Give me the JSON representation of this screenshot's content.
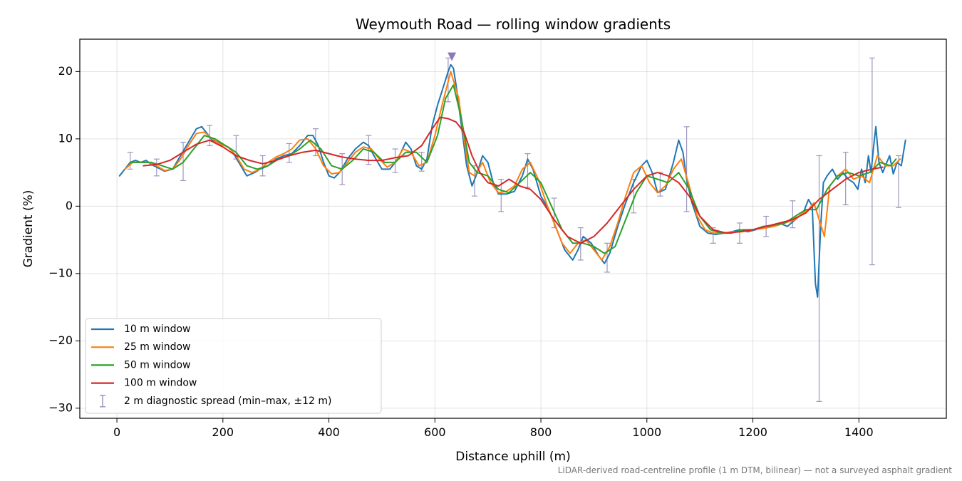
{
  "chart_data": {
    "type": "line",
    "title": "Weymouth Road — rolling window gradients",
    "xlabel": "Distance uphill (m)",
    "ylabel": "Gradient (%)",
    "xlim": [
      -70,
      1565
    ],
    "ylim": [
      -31.5,
      24.8
    ],
    "xticks": [
      0,
      200,
      400,
      600,
      800,
      1000,
      1200,
      1400
    ],
    "yticks": [
      -30,
      -20,
      -10,
      0,
      10,
      20
    ],
    "ytick_labels": [
      "−30",
      "−20",
      "−10",
      "0",
      "10",
      "20"
    ],
    "grid": true,
    "legend_position": "lower-left",
    "footnote": "LiDAR-derived road-centreline profile (1 m DTM, bilinear) — not a surveyed asphalt gradient",
    "series": [
      {
        "name": "10 m window",
        "color": "#1f77b4",
        "x": [
          5,
          15,
          25,
          35,
          45,
          55,
          65,
          75,
          90,
          105,
          120,
          135,
          150,
          160,
          170,
          180,
          190,
          200,
          215,
          230,
          245,
          260,
          270,
          285,
          300,
          315,
          330,
          345,
          360,
          370,
          380,
          390,
          400,
          410,
          420,
          435,
          450,
          465,
          475,
          485,
          500,
          515,
          530,
          545,
          555,
          565,
          575,
          585,
          595,
          605,
          615,
          625,
          630,
          635,
          640,
          650,
          660,
          670,
          680,
          690,
          700,
          710,
          720,
          735,
          750,
          765,
          775,
          785,
          800,
          815,
          830,
          845,
          860,
          870,
          880,
          895,
          910,
          920,
          930,
          945,
          960,
          975,
          990,
          1000,
          1010,
          1020,
          1035,
          1050,
          1060,
          1068,
          1075,
          1085,
          1100,
          1115,
          1130,
          1145,
          1160,
          1175,
          1190,
          1205,
          1220,
          1235,
          1250,
          1265,
          1280,
          1295,
          1305,
          1312,
          1318,
          1322,
          1328,
          1333,
          1340,
          1350,
          1360,
          1370,
          1380,
          1390,
          1398,
          1405,
          1412,
          1418,
          1423,
          1428,
          1432,
          1438,
          1445,
          1450,
          1458,
          1465,
          1472,
          1480,
          1488
        ],
        "y": [
          4.5,
          5.5,
          6.5,
          6.8,
          6.5,
          6.8,
          6.2,
          5.8,
          5.2,
          5.5,
          7.5,
          9.5,
          11.5,
          11.8,
          10.8,
          9.8,
          9.5,
          9.2,
          8.5,
          6.5,
          4.5,
          5.0,
          5.5,
          6.0,
          7.0,
          7.5,
          7.8,
          9.0,
          10.5,
          10.5,
          9.0,
          6.5,
          4.5,
          4.2,
          5.0,
          7.0,
          8.5,
          9.5,
          9.0,
          7.5,
          5.5,
          5.5,
          7.0,
          9.5,
          8.5,
          6.0,
          5.5,
          7.0,
          12.0,
          15.0,
          17.5,
          20.0,
          21.0,
          20.5,
          18.0,
          12.0,
          6.0,
          3.0,
          5.0,
          7.5,
          6.5,
          3.5,
          1.8,
          1.8,
          2.2,
          4.5,
          7.0,
          5.5,
          1.5,
          -0.5,
          -3.5,
          -6.5,
          -8.0,
          -6.5,
          -4.5,
          -5.5,
          -7.5,
          -8.5,
          -7.0,
          -3.0,
          0.5,
          3.5,
          6.0,
          6.8,
          5.0,
          2.0,
          2.5,
          6.5,
          9.8,
          8.0,
          4.0,
          0.5,
          -3.0,
          -4.0,
          -4.2,
          -4.0,
          -3.8,
          -3.5,
          -3.8,
          -3.5,
          -3.0,
          -3.0,
          -2.5,
          -3.0,
          -2.0,
          -1.0,
          1.0,
          0.0,
          -11.5,
          -13.5,
          -3.0,
          3.5,
          4.5,
          5.5,
          4.0,
          5.0,
          4.0,
          3.5,
          2.5,
          5.5,
          3.5,
          7.5,
          5.0,
          9.0,
          11.8,
          6.5,
          5.0,
          6.0,
          7.5,
          4.8,
          6.5,
          6.0,
          9.8
        ]
      },
      {
        "name": "25 m window",
        "color": "#ff7f0e",
        "x": [
          15,
          30,
          45,
          60,
          75,
          90,
          105,
          120,
          135,
          150,
          165,
          180,
          195,
          210,
          225,
          240,
          255,
          270,
          285,
          300,
          315,
          330,
          345,
          360,
          375,
          390,
          405,
          420,
          435,
          450,
          465,
          480,
          495,
          510,
          525,
          540,
          555,
          570,
          585,
          600,
          615,
          630,
          645,
          655,
          665,
          675,
          690,
          705,
          720,
          735,
          750,
          765,
          780,
          795,
          810,
          825,
          840,
          855,
          870,
          885,
          900,
          915,
          930,
          945,
          960,
          975,
          990,
          1005,
          1020,
          1035,
          1050,
          1065,
          1080,
          1095,
          1110,
          1125,
          1140,
          1160,
          1180,
          1200,
          1220,
          1240,
          1260,
          1280,
          1295,
          1305,
          1315,
          1325,
          1335,
          1345,
          1360,
          1375,
          1390,
          1405,
          1420,
          1435,
          1450,
          1465,
          1478
        ],
        "y": [
          5.5,
          6.5,
          6.5,
          6.5,
          6.0,
          5.3,
          5.5,
          7.0,
          9.0,
          10.8,
          11.0,
          10.0,
          9.2,
          8.8,
          7.5,
          5.5,
          5.0,
          5.5,
          6.5,
          7.3,
          7.8,
          8.5,
          9.8,
          10.0,
          8.5,
          6.0,
          4.8,
          5.0,
          6.5,
          8.0,
          8.8,
          8.5,
          7.0,
          5.8,
          6.5,
          8.5,
          8.0,
          6.0,
          6.5,
          10.5,
          15.5,
          20.0,
          16.0,
          10.0,
          5.0,
          4.5,
          6.5,
          3.5,
          2.0,
          2.2,
          3.0,
          5.5,
          6.5,
          4.0,
          0.5,
          -2.5,
          -5.5,
          -7.0,
          -5.5,
          -5.0,
          -6.5,
          -8.0,
          -6.0,
          -2.5,
          1.5,
          5.0,
          6.0,
          3.5,
          2.0,
          3.0,
          5.5,
          7.0,
          3.0,
          -1.5,
          -3.5,
          -4.0,
          -4.0,
          -3.8,
          -3.8,
          -3.5,
          -3.3,
          -3.0,
          -2.5,
          -2.0,
          -1.0,
          -0.5,
          0.5,
          -2.0,
          -4.5,
          3.0,
          4.5,
          5.5,
          4.0,
          4.5,
          3.5,
          7.5,
          6.0,
          6.0,
          7.0
        ]
      },
      {
        "name": "50 m window",
        "color": "#2ca02c",
        "x": [
          25,
          45,
          65,
          85,
          105,
          125,
          145,
          165,
          185,
          205,
          225,
          245,
          265,
          285,
          305,
          325,
          345,
          365,
          385,
          405,
          425,
          445,
          465,
          485,
          505,
          525,
          545,
          565,
          585,
          605,
          620,
          635,
          650,
          665,
          680,
          700,
          720,
          740,
          760,
          780,
          800,
          820,
          840,
          860,
          880,
          900,
          920,
          940,
          960,
          980,
          1000,
          1020,
          1040,
          1060,
          1080,
          1100,
          1120,
          1140,
          1160,
          1180,
          1200,
          1220,
          1240,
          1260,
          1280,
          1300,
          1320,
          1340,
          1360,
          1380,
          1400,
          1420,
          1440,
          1460,
          1470
        ],
        "y": [
          6.5,
          6.5,
          6.5,
          6.0,
          5.5,
          6.5,
          8.5,
          10.5,
          10.0,
          9.0,
          8.0,
          6.0,
          5.5,
          6.0,
          7.0,
          7.5,
          8.5,
          9.8,
          8.5,
          6.0,
          5.5,
          6.8,
          8.5,
          8.0,
          6.5,
          6.5,
          8.0,
          8.0,
          6.5,
          10.5,
          16.0,
          18.0,
          13.0,
          6.5,
          5.0,
          4.5,
          2.5,
          2.0,
          3.5,
          5.0,
          3.5,
          0.0,
          -3.5,
          -5.5,
          -5.5,
          -6.0,
          -7.0,
          -6.0,
          -2.0,
          2.0,
          4.5,
          4.0,
          3.5,
          5.0,
          2.5,
          -1.5,
          -3.5,
          -4.0,
          -4.0,
          -3.5,
          -3.5,
          -3.0,
          -2.8,
          -2.5,
          -1.5,
          -0.5,
          -0.5,
          2.5,
          4.5,
          5.0,
          4.5,
          5.0,
          6.5,
          6.0,
          7.0
        ]
      },
      {
        "name": "100 m window",
        "color": "#d62728",
        "x": [
          50,
          75,
          100,
          125,
          150,
          175,
          200,
          225,
          250,
          275,
          300,
          325,
          350,
          375,
          400,
          425,
          450,
          475,
          500,
          525,
          550,
          575,
          595,
          610,
          625,
          640,
          655,
          670,
          685,
          700,
          720,
          740,
          760,
          780,
          800,
          825,
          850,
          875,
          900,
          925,
          950,
          975,
          1000,
          1020,
          1040,
          1060,
          1080,
          1100,
          1125,
          1150,
          1175,
          1200,
          1225,
          1250,
          1275,
          1300,
          1325,
          1350,
          1375,
          1400,
          1425,
          1445
        ],
        "y": [
          6.0,
          6.2,
          6.8,
          8.0,
          9.2,
          9.8,
          8.8,
          7.5,
          6.8,
          6.3,
          6.8,
          7.5,
          8.0,
          8.3,
          7.8,
          7.3,
          7.0,
          6.8,
          6.8,
          7.2,
          7.5,
          9.0,
          11.5,
          13.2,
          13.0,
          12.5,
          11.0,
          7.5,
          5.0,
          3.5,
          3.0,
          4.0,
          3.0,
          2.5,
          1.0,
          -2.0,
          -4.5,
          -5.5,
          -4.5,
          -2.5,
          0.0,
          2.5,
          4.5,
          5.0,
          4.5,
          3.5,
          1.5,
          -1.5,
          -3.5,
          -4.0,
          -3.8,
          -3.5,
          -3.0,
          -2.5,
          -2.0,
          -1.0,
          1.0,
          2.5,
          4.0,
          5.0,
          5.5,
          5.8
        ]
      },
      {
        "name": "2 m diagnostic spread (min–max, ±12 m)",
        "type": "errorbar",
        "color": "#9d96be",
        "points": [
          {
            "x": 25,
            "low": 5.5,
            "high": 8.0
          },
          {
            "x": 75,
            "low": 4.5,
            "high": 7.0
          },
          {
            "x": 125,
            "low": 3.8,
            "high": 9.5
          },
          {
            "x": 175,
            "low": 9.0,
            "high": 12.0
          },
          {
            "x": 225,
            "low": 7.0,
            "high": 10.5
          },
          {
            "x": 275,
            "low": 4.5,
            "high": 7.5
          },
          {
            "x": 325,
            "low": 6.5,
            "high": 9.3
          },
          {
            "x": 375,
            "low": 7.5,
            "high": 11.5
          },
          {
            "x": 425,
            "low": 3.2,
            "high": 7.8
          },
          {
            "x": 475,
            "low": 6.2,
            "high": 10.5
          },
          {
            "x": 525,
            "low": 5.0,
            "high": 8.5
          },
          {
            "x": 575,
            "low": 5.2,
            "high": 8.0
          },
          {
            "x": 625,
            "low": 15.5,
            "high": 22.0
          },
          {
            "x": 675,
            "low": 1.5,
            "high": 6.0
          },
          {
            "x": 725,
            "low": -0.8,
            "high": 4.0
          },
          {
            "x": 775,
            "low": 2.8,
            "high": 7.8
          },
          {
            "x": 825,
            "low": -3.2,
            "high": 1.2
          },
          {
            "x": 875,
            "low": -8.0,
            "high": -3.2
          },
          {
            "x": 925,
            "low": -9.8,
            "high": -5.5
          },
          {
            "x": 975,
            "low": -1.0,
            "high": 4.0
          },
          {
            "x": 1025,
            "low": 1.5,
            "high": 5.0
          },
          {
            "x": 1075,
            "low": -0.8,
            "high": 11.8
          },
          {
            "x": 1125,
            "low": -5.5,
            "high": -3.2
          },
          {
            "x": 1175,
            "low": -5.5,
            "high": -2.5
          },
          {
            "x": 1225,
            "low": -4.5,
            "high": -1.5
          },
          {
            "x": 1275,
            "low": -3.2,
            "high": 0.8
          },
          {
            "x": 1325,
            "low": -29.0,
            "high": 7.5
          },
          {
            "x": 1375,
            "low": 0.2,
            "high": 8.0
          },
          {
            "x": 1425,
            "low": -8.7,
            "high": 22.0
          },
          {
            "x": 1475,
            "low": -0.2,
            "high": 7.5
          }
        ]
      }
    ],
    "annotations": [
      {
        "type": "max-marker",
        "shape": "triangle-down",
        "color": "#8c7bb5",
        "x": 632,
        "y": 22.2
      }
    ]
  }
}
